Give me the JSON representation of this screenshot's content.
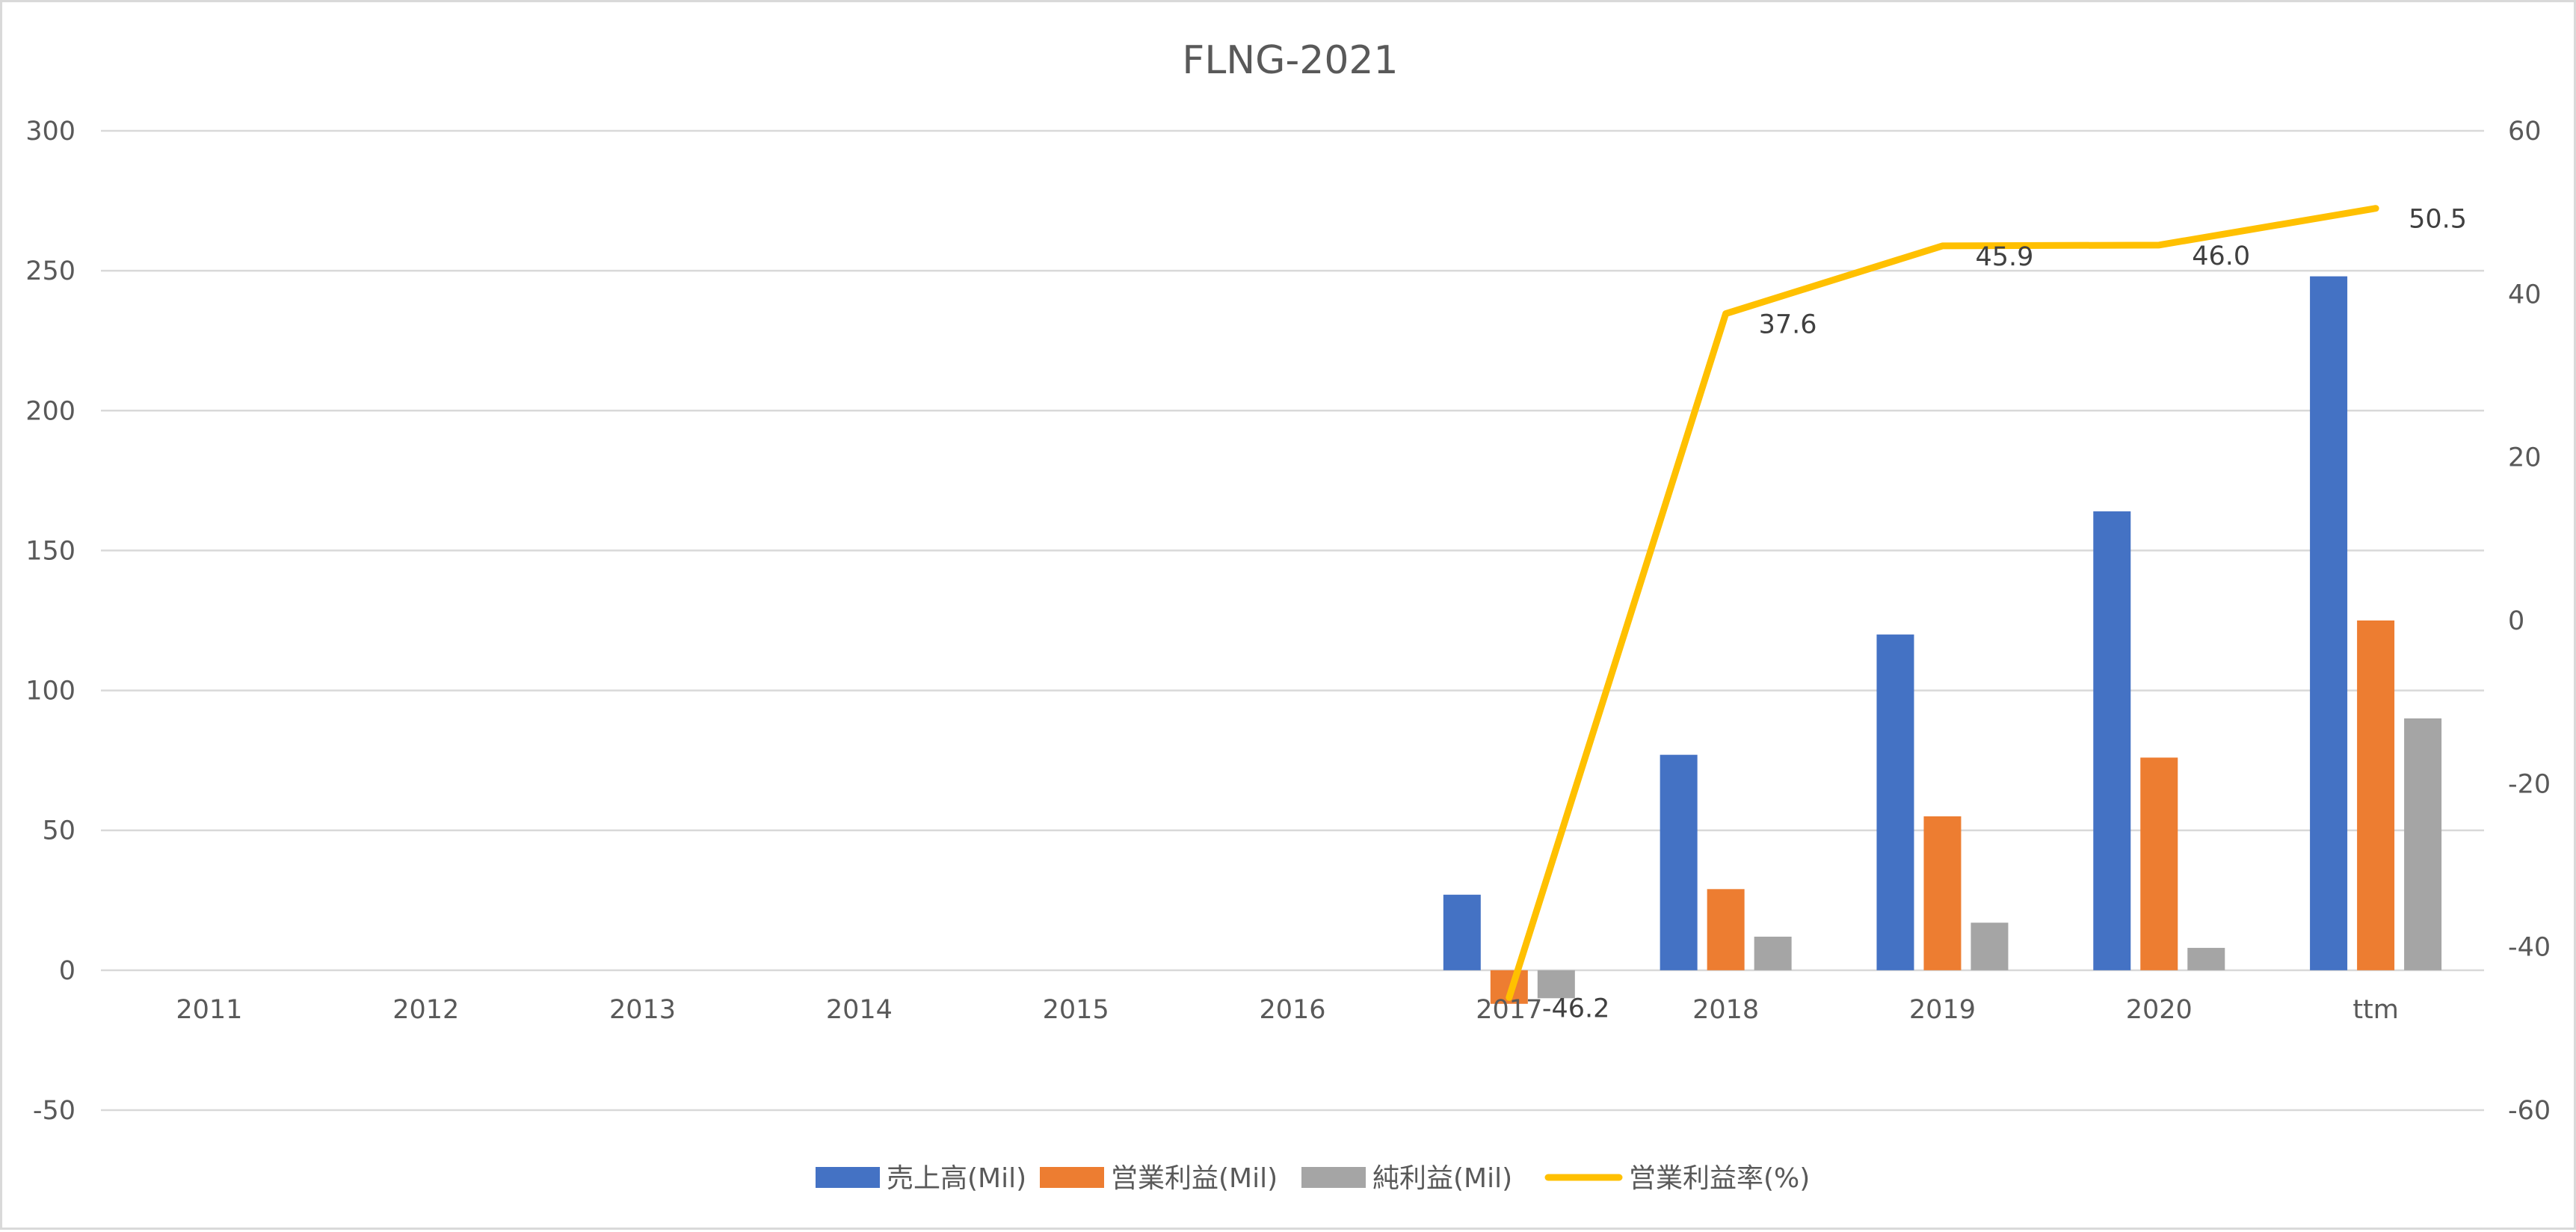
{
  "chart_data": {
    "type": "bar",
    "title": "FLNG-2021",
    "categories": [
      "2011",
      "2012",
      "2013",
      "2014",
      "2015",
      "2016",
      "2017",
      "2018",
      "2019",
      "2020",
      "ttm"
    ],
    "y_left": {
      "min": -50,
      "max": 300,
      "ticks": [
        300,
        250,
        200,
        150,
        100,
        50,
        0,
        -50
      ]
    },
    "y_right": {
      "min": -60,
      "max": 60,
      "ticks": [
        60,
        40,
        20,
        0,
        -20,
        -40,
        -60
      ]
    },
    "grid": true,
    "legend_position": "bottom",
    "series": [
      {
        "name": "売上高(Mil)",
        "type": "bar",
        "axis": "left",
        "color": "#4472C4",
        "values": [
          null,
          null,
          null,
          null,
          null,
          null,
          27,
          77,
          120,
          164,
          248
        ]
      },
      {
        "name": "営業利益(Mil)",
        "type": "bar",
        "axis": "left",
        "color": "#ED7D31",
        "values": [
          null,
          null,
          null,
          null,
          null,
          null,
          -12,
          29,
          55,
          76,
          125
        ]
      },
      {
        "name": "純利益(Mil)",
        "type": "bar",
        "axis": "left",
        "color": "#A5A5A5",
        "values": [
          null,
          null,
          null,
          null,
          null,
          null,
          -10,
          12,
          17,
          8,
          90
        ]
      },
      {
        "name": "営業利益率(%)",
        "type": "line",
        "axis": "right",
        "color": "#FFC000",
        "values": [
          null,
          null,
          null,
          null,
          null,
          null,
          -46.2,
          37.6,
          45.9,
          46.0,
          50.5
        ],
        "labels": [
          "",
          "",
          "",
          "",
          "",
          "",
          "-46.2",
          "37.6",
          "45.9",
          "46.0",
          "50.5"
        ],
        "label_colors": [
          "",
          "",
          "",
          "",
          "",
          "",
          "#FF0000",
          "#404040",
          "#404040",
          "#404040",
          "#404040"
        ]
      }
    ]
  }
}
